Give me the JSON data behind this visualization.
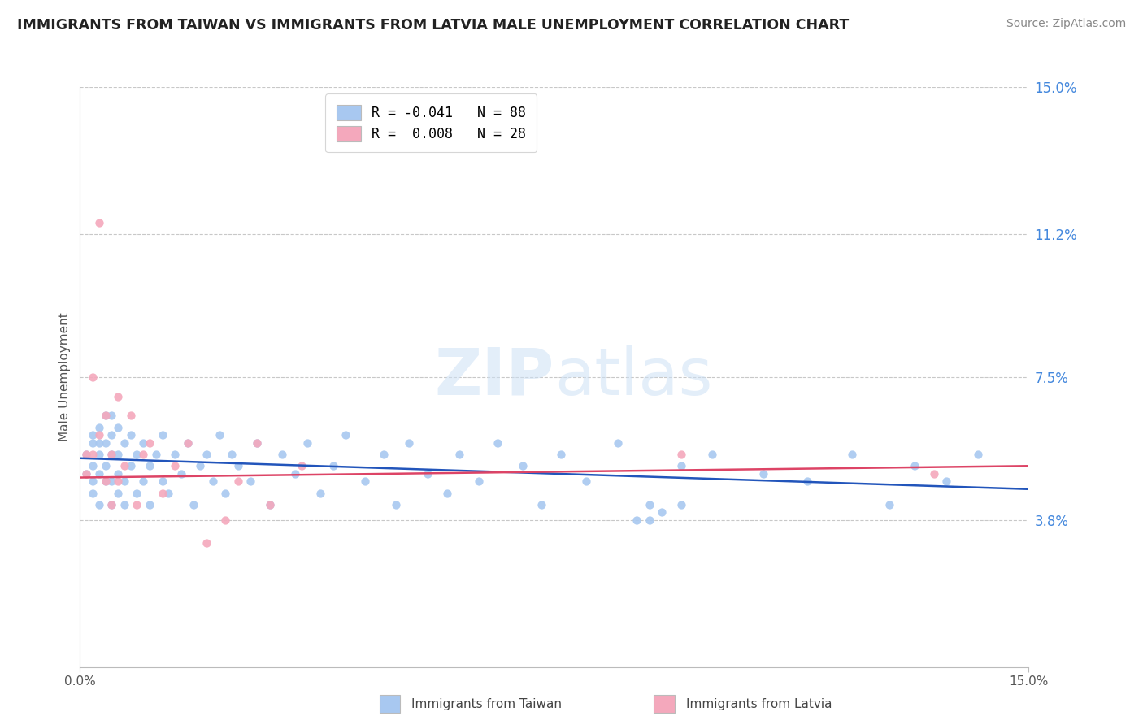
{
  "title": "IMMIGRANTS FROM TAIWAN VS IMMIGRANTS FROM LATVIA MALE UNEMPLOYMENT CORRELATION CHART",
  "source": "Source: ZipAtlas.com",
  "ylabel": "Male Unemployment",
  "xlim": [
    0.0,
    0.15
  ],
  "ylim": [
    0.0,
    0.15
  ],
  "ytick_labels_right": [
    "15.0%",
    "11.2%",
    "7.5%",
    "3.8%"
  ],
  "ytick_positions": [
    0.15,
    0.112,
    0.075,
    0.038
  ],
  "legend_entries": [
    {
      "label": "R = -0.041   N = 88",
      "color": "#a8c8f0"
    },
    {
      "label": "R =  0.008   N = 28",
      "color": "#f4a8bc"
    }
  ],
  "taiwan_color": "#a8c8f0",
  "latvia_color": "#f4a8bc",
  "taiwan_line_color": "#2255bb",
  "latvia_line_color": "#dd4466",
  "watermark_text": "ZIPatlas",
  "background_color": "#ffffff",
  "grid_color": "#c8c8c8",
  "taiwan_scatter_x": [
    0.001,
    0.001,
    0.002,
    0.002,
    0.002,
    0.002,
    0.002,
    0.003,
    0.003,
    0.003,
    0.003,
    0.003,
    0.004,
    0.004,
    0.004,
    0.004,
    0.005,
    0.005,
    0.005,
    0.005,
    0.005,
    0.006,
    0.006,
    0.006,
    0.006,
    0.007,
    0.007,
    0.007,
    0.008,
    0.008,
    0.009,
    0.009,
    0.01,
    0.01,
    0.011,
    0.011,
    0.012,
    0.013,
    0.013,
    0.014,
    0.015,
    0.016,
    0.017,
    0.018,
    0.019,
    0.02,
    0.021,
    0.022,
    0.023,
    0.024,
    0.025,
    0.027,
    0.028,
    0.03,
    0.032,
    0.034,
    0.036,
    0.038,
    0.04,
    0.042,
    0.045,
    0.048,
    0.05,
    0.052,
    0.055,
    0.058,
    0.06,
    0.063,
    0.066,
    0.07,
    0.073,
    0.076,
    0.08,
    0.085,
    0.09,
    0.095,
    0.1,
    0.108,
    0.115,
    0.122,
    0.128,
    0.132,
    0.137,
    0.142,
    0.09,
    0.095,
    0.088,
    0.092
  ],
  "taiwan_scatter_y": [
    0.05,
    0.055,
    0.045,
    0.052,
    0.058,
    0.06,
    0.048,
    0.042,
    0.05,
    0.055,
    0.058,
    0.062,
    0.048,
    0.052,
    0.058,
    0.065,
    0.042,
    0.048,
    0.055,
    0.06,
    0.065,
    0.045,
    0.05,
    0.055,
    0.062,
    0.042,
    0.048,
    0.058,
    0.052,
    0.06,
    0.045,
    0.055,
    0.048,
    0.058,
    0.042,
    0.052,
    0.055,
    0.048,
    0.06,
    0.045,
    0.055,
    0.05,
    0.058,
    0.042,
    0.052,
    0.055,
    0.048,
    0.06,
    0.045,
    0.055,
    0.052,
    0.048,
    0.058,
    0.042,
    0.055,
    0.05,
    0.058,
    0.045,
    0.052,
    0.06,
    0.048,
    0.055,
    0.042,
    0.058,
    0.05,
    0.045,
    0.055,
    0.048,
    0.058,
    0.052,
    0.042,
    0.055,
    0.048,
    0.058,
    0.042,
    0.052,
    0.055,
    0.05,
    0.048,
    0.055,
    0.042,
    0.052,
    0.048,
    0.055,
    0.038,
    0.042,
    0.038,
    0.04
  ],
  "latvia_scatter_x": [
    0.001,
    0.001,
    0.002,
    0.002,
    0.003,
    0.003,
    0.004,
    0.004,
    0.005,
    0.005,
    0.006,
    0.006,
    0.007,
    0.008,
    0.009,
    0.01,
    0.011,
    0.013,
    0.015,
    0.017,
    0.02,
    0.023,
    0.025,
    0.028,
    0.03,
    0.035,
    0.095,
    0.135
  ],
  "latvia_scatter_y": [
    0.05,
    0.055,
    0.075,
    0.055,
    0.115,
    0.06,
    0.048,
    0.065,
    0.042,
    0.055,
    0.07,
    0.048,
    0.052,
    0.065,
    0.042,
    0.055,
    0.058,
    0.045,
    0.052,
    0.058,
    0.032,
    0.038,
    0.048,
    0.058,
    0.042,
    0.052,
    0.055,
    0.05
  ],
  "taiwan_line_x": [
    0.0,
    0.15
  ],
  "taiwan_line_y": [
    0.054,
    0.046
  ],
  "latvia_line_x": [
    0.0,
    0.15
  ],
  "latvia_line_y": [
    0.049,
    0.052
  ]
}
